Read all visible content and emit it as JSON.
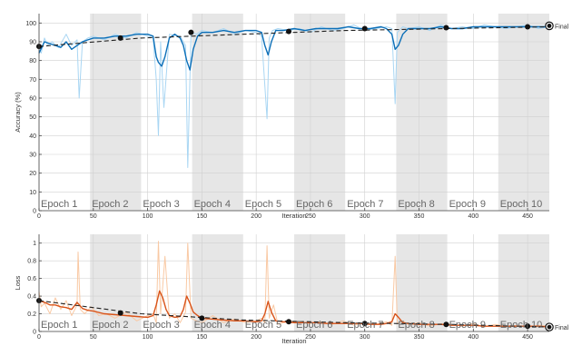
{
  "colors": {
    "band": "#e6e6e6",
    "acc_raw": "#a9d6f3",
    "acc_smooth": "#0b6fb8",
    "loss_raw": "#f9c9a4",
    "loss_smooth": "#d9541a",
    "trend": "#222222",
    "axis": "#444444",
    "grid": "#d0d0d0"
  },
  "chart_data": [
    {
      "type": "line",
      "xlabel": "Iteration",
      "ylabel": "Accuracy (%)",
      "xlim": [
        0,
        470
      ],
      "ylim": [
        0,
        105
      ],
      "xticks": [
        0,
        50,
        100,
        150,
        200,
        250,
        300,
        350,
        400,
        450
      ],
      "yticks": [
        0,
        10,
        20,
        30,
        40,
        50,
        60,
        70,
        80,
        90,
        100
      ],
      "grid": true,
      "epoch_labels": [
        "Epoch 1",
        "Epoch 2",
        "Epoch 3",
        "Epoch 4",
        "Epoch 5",
        "Epoch 6",
        "Epoch 7",
        "Epoch 8",
        "Epoch 9",
        "Epoch 10"
      ],
      "epoch_length": 47,
      "final_label": "Final",
      "series": [
        {
          "role": "raw",
          "x": [
            0,
            2,
            5,
            8,
            12,
            18,
            25,
            30,
            35,
            37,
            40,
            45,
            50,
            60,
            70,
            80,
            90,
            100,
            105,
            108,
            110,
            112,
            115,
            120,
            130,
            135,
            137,
            140,
            145,
            150,
            160,
            170,
            180,
            190,
            200,
            205,
            210,
            212,
            215,
            220,
            230,
            240,
            250,
            260,
            270,
            280,
            290,
            300,
            310,
            320,
            325,
            328,
            330,
            335,
            340,
            350,
            360,
            370,
            380,
            390,
            400,
            410,
            420,
            430,
            440,
            450,
            460,
            470
          ],
          "y": [
            86,
            84,
            92,
            88,
            90,
            87,
            94,
            88,
            91,
            60,
            90,
            92,
            93,
            91,
            94,
            92,
            95,
            93,
            92,
            70,
            40,
            90,
            55,
            94,
            93,
            88,
            23,
            95,
            94,
            96,
            95,
            97,
            94,
            96,
            95,
            93,
            49,
            92,
            96,
            97,
            96,
            97,
            95,
            98,
            96,
            97,
            99,
            96,
            97,
            98,
            97,
            57,
            95,
            98,
            97,
            98,
            96,
            99,
            97,
            98,
            97,
            99,
            98,
            97,
            98,
            99,
            97,
            98
          ]
        },
        {
          "role": "smoothed",
          "x": [
            0,
            5,
            10,
            15,
            20,
            25,
            30,
            35,
            40,
            45,
            50,
            60,
            70,
            80,
            90,
            100,
            105,
            108,
            110,
            113,
            116,
            120,
            125,
            130,
            133,
            136,
            139,
            142,
            146,
            150,
            160,
            170,
            180,
            190,
            200,
            205,
            208,
            211,
            214,
            218,
            225,
            235,
            245,
            255,
            265,
            275,
            285,
            295,
            305,
            315,
            320,
            325,
            328,
            331,
            335,
            340,
            350,
            360,
            370,
            380,
            390,
            400,
            410,
            420,
            430,
            440,
            450,
            460,
            470
          ],
          "y": [
            84,
            90,
            89,
            88,
            87,
            90,
            86,
            88,
            90,
            91,
            92,
            92,
            93,
            93,
            94,
            94,
            93,
            82,
            79,
            77,
            82,
            92,
            94,
            92,
            88,
            80,
            75,
            86,
            93,
            95,
            95,
            96,
            95,
            96,
            96,
            95,
            88,
            83,
            90,
            96,
            96,
            97,
            96,
            97,
            97,
            97,
            98,
            97,
            97,
            98,
            97,
            94,
            86,
            88,
            94,
            97,
            97,
            97,
            98,
            97,
            97,
            98,
            98,
            98,
            98,
            98,
            98,
            98,
            98
          ]
        },
        {
          "role": "trend",
          "x": [
            0,
            94,
            188,
            282,
            376,
            470
          ],
          "y": [
            87.5,
            92,
            94,
            96,
            97,
            98
          ]
        }
      ],
      "markers": {
        "x": [
          0,
          75,
          140,
          230,
          300,
          375,
          450,
          470
        ],
        "y": [
          87.5,
          92,
          95,
          95.5,
          97,
          97.5,
          98,
          98.5
        ]
      }
    },
    {
      "type": "line",
      "xlabel": "Iteration",
      "ylabel": "Loss",
      "xlim": [
        0,
        470
      ],
      "ylim": [
        0,
        1.1
      ],
      "xticks": [
        0,
        50,
        100,
        150,
        200,
        250,
        300,
        350,
        400,
        450
      ],
      "yticks": [
        0,
        0.2,
        0.4,
        0.6,
        0.8,
        1
      ],
      "grid": true,
      "epoch_labels": [
        "Epoch 1",
        "Epoch 2",
        "Epoch 3",
        "Epoch 4",
        "Epoch 5",
        "Epoch 6",
        "Epoch 7",
        "Epoch 8",
        "Epoch 9",
        "Epoch 10"
      ],
      "epoch_length": 47,
      "final_label": "Final",
      "series": [
        {
          "role": "raw",
          "x": [
            0,
            2,
            5,
            10,
            15,
            20,
            25,
            30,
            35,
            36,
            38,
            42,
            48,
            55,
            62,
            70,
            80,
            90,
            100,
            105,
            108,
            110,
            112,
            116,
            120,
            125,
            130,
            135,
            137,
            140,
            145,
            150,
            160,
            170,
            180,
            190,
            200,
            205,
            208,
            210,
            212,
            216,
            220,
            230,
            240,
            250,
            260,
            270,
            280,
            290,
            300,
            310,
            320,
            325,
            328,
            330,
            335,
            340,
            350,
            360,
            370,
            380,
            390,
            400,
            410,
            420,
            430,
            440,
            450,
            460,
            470
          ],
          "y": [
            0.45,
            0.28,
            0.32,
            0.2,
            0.38,
            0.25,
            0.35,
            0.18,
            0.3,
            0.9,
            0.25,
            0.2,
            0.28,
            0.18,
            0.2,
            0.15,
            0.22,
            0.12,
            0.18,
            0.2,
            0.1,
            1.02,
            0.2,
            0.85,
            0.15,
            0.2,
            0.1,
            0.22,
            1.0,
            0.15,
            0.12,
            0.1,
            0.18,
            0.1,
            0.14,
            0.1,
            0.12,
            0.15,
            0.1,
            0.97,
            0.15,
            0.3,
            0.08,
            0.12,
            0.1,
            0.09,
            0.11,
            0.08,
            0.12,
            0.07,
            0.1,
            0.08,
            0.11,
            0.07,
            0.85,
            0.09,
            0.12,
            0.08,
            0.1,
            0.06,
            0.09,
            0.08,
            0.06,
            0.09,
            0.05,
            0.08,
            0.06,
            0.07,
            0.05,
            0.07,
            0.06
          ]
        },
        {
          "role": "smoothed",
          "x": [
            0,
            5,
            10,
            15,
            20,
            25,
            30,
            35,
            40,
            45,
            50,
            60,
            70,
            80,
            90,
            100,
            105,
            108,
            111,
            114,
            117,
            120,
            125,
            130,
            133,
            136,
            139,
            142,
            146,
            150,
            160,
            170,
            180,
            190,
            200,
            205,
            208,
            211,
            214,
            218,
            225,
            235,
            245,
            255,
            265,
            275,
            285,
            295,
            305,
            315,
            320,
            325,
            328,
            331,
            335,
            340,
            350,
            360,
            370,
            380,
            390,
            400,
            410,
            420,
            430,
            440,
            450,
            460,
            470
          ],
          "y": [
            0.35,
            0.33,
            0.3,
            0.3,
            0.28,
            0.27,
            0.25,
            0.33,
            0.26,
            0.24,
            0.23,
            0.2,
            0.19,
            0.18,
            0.17,
            0.16,
            0.18,
            0.3,
            0.46,
            0.38,
            0.25,
            0.18,
            0.16,
            0.17,
            0.25,
            0.4,
            0.32,
            0.22,
            0.18,
            0.15,
            0.14,
            0.13,
            0.12,
            0.12,
            0.11,
            0.12,
            0.2,
            0.34,
            0.22,
            0.12,
            0.11,
            0.1,
            0.1,
            0.1,
            0.09,
            0.09,
            0.09,
            0.09,
            0.08,
            0.08,
            0.09,
            0.11,
            0.2,
            0.16,
            0.1,
            0.09,
            0.08,
            0.08,
            0.08,
            0.07,
            0.07,
            0.07,
            0.06,
            0.06,
            0.06,
            0.06,
            0.06,
            0.06,
            0.05
          ]
        },
        {
          "role": "trend",
          "x": [
            0,
            94,
            188,
            282,
            376,
            470
          ],
          "y": [
            0.35,
            0.2,
            0.13,
            0.1,
            0.08,
            0.05
          ]
        }
      ],
      "markers": {
        "x": [
          0,
          75,
          150,
          230,
          300,
          375,
          450,
          470
        ],
        "y": [
          0.35,
          0.21,
          0.15,
          0.11,
          0.09,
          0.08,
          0.06,
          0.05
        ]
      }
    }
  ]
}
